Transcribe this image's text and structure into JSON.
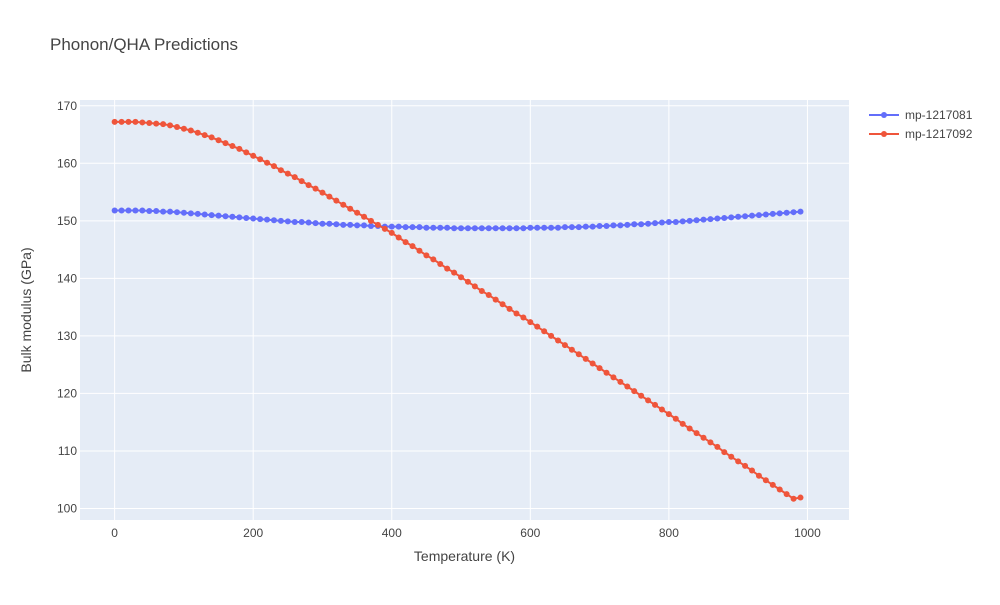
{
  "chart_data": {
    "type": "line",
    "title": "Phonon/QHA Predictions",
    "xlabel": "Temperature (K)",
    "ylabel": "Bulk modulus (GPa)",
    "xlim": [
      -50,
      1060
    ],
    "ylim": [
      98,
      171
    ],
    "xticks": [
      0,
      200,
      400,
      600,
      800,
      1000
    ],
    "xtick_labels": [
      "0",
      "200",
      "400",
      "600",
      "800",
      "1000"
    ],
    "yticks": [
      100,
      110,
      120,
      130,
      140,
      150,
      160,
      170
    ],
    "ytick_labels": [
      "100",
      "110",
      "120",
      "130",
      "140",
      "150",
      "160",
      "170"
    ],
    "grid": true,
    "legend_position": "top-right",
    "x": [
      0,
      10,
      20,
      30,
      40,
      50,
      60,
      70,
      80,
      90,
      100,
      110,
      120,
      130,
      140,
      150,
      160,
      170,
      180,
      190,
      200,
      210,
      220,
      230,
      240,
      250,
      260,
      270,
      280,
      290,
      300,
      310,
      320,
      330,
      340,
      350,
      360,
      370,
      380,
      390,
      400,
      410,
      420,
      430,
      440,
      450,
      460,
      470,
      480,
      490,
      500,
      510,
      520,
      530,
      540,
      550,
      560,
      570,
      580,
      590,
      600,
      610,
      620,
      630,
      640,
      650,
      660,
      670,
      680,
      690,
      700,
      710,
      720,
      730,
      740,
      750,
      760,
      770,
      780,
      790,
      800,
      810,
      820,
      830,
      840,
      850,
      860,
      870,
      880,
      890,
      900,
      910,
      920,
      930,
      940,
      950,
      960,
      970,
      980,
      990
    ],
    "series": [
      {
        "name": "mp-1217081",
        "color": "#636efa",
        "values": [
          151.8,
          151.8,
          151.8,
          151.8,
          151.8,
          151.7,
          151.7,
          151.6,
          151.6,
          151.5,
          151.4,
          151.3,
          151.2,
          151.1,
          151.0,
          150.9,
          150.8,
          150.7,
          150.6,
          150.5,
          150.4,
          150.3,
          150.2,
          150.1,
          150.0,
          149.9,
          149.8,
          149.8,
          149.7,
          149.6,
          149.5,
          149.5,
          149.4,
          149.3,
          149.3,
          149.2,
          149.2,
          149.1,
          149.1,
          149.0,
          149.0,
          149.0,
          148.9,
          148.9,
          148.9,
          148.8,
          148.8,
          148.8,
          148.8,
          148.7,
          148.7,
          148.7,
          148.7,
          148.7,
          148.7,
          148.7,
          148.7,
          148.7,
          148.7,
          148.7,
          148.8,
          148.8,
          148.8,
          148.8,
          148.8,
          148.9,
          148.9,
          148.9,
          149.0,
          149.0,
          149.1,
          149.1,
          149.2,
          149.2,
          149.3,
          149.4,
          149.4,
          149.5,
          149.6,
          149.7,
          149.8,
          149.8,
          149.9,
          150.0,
          150.1,
          150.2,
          150.3,
          150.4,
          150.5,
          150.6,
          150.7,
          150.8,
          150.9,
          151.0,
          151.1,
          151.2,
          151.3,
          151.4,
          151.5,
          151.6
        ]
      },
      {
        "name": "mp-1217092",
        "color": "#ef553b",
        "values": [
          167.2,
          167.2,
          167.2,
          167.2,
          167.1,
          167.0,
          166.9,
          166.8,
          166.6,
          166.3,
          166.0,
          165.7,
          165.3,
          164.9,
          164.5,
          164.0,
          163.5,
          163.0,
          162.5,
          161.9,
          161.3,
          160.7,
          160.1,
          159.5,
          158.8,
          158.2,
          157.6,
          156.9,
          156.2,
          155.6,
          154.9,
          154.2,
          153.5,
          152.8,
          152.1,
          151.4,
          150.7,
          150.0,
          149.3,
          148.6,
          147.9,
          147.1,
          146.3,
          145.6,
          144.8,
          144.0,
          143.3,
          142.5,
          141.7,
          141.0,
          140.2,
          139.4,
          138.6,
          137.8,
          137.1,
          136.3,
          135.5,
          134.7,
          133.9,
          133.2,
          132.4,
          131.6,
          130.8,
          130.0,
          129.2,
          128.4,
          127.6,
          126.8,
          126.0,
          125.2,
          124.4,
          123.6,
          122.8,
          122.0,
          121.2,
          120.4,
          119.6,
          118.8,
          118.0,
          117.2,
          116.4,
          115.6,
          114.7,
          113.9,
          113.1,
          112.3,
          111.5,
          110.7,
          109.8,
          109.0,
          108.2,
          107.4,
          106.6,
          105.7,
          104.9,
          104.1,
          103.3,
          102.5,
          101.7,
          101.9
        ]
      }
    ]
  }
}
